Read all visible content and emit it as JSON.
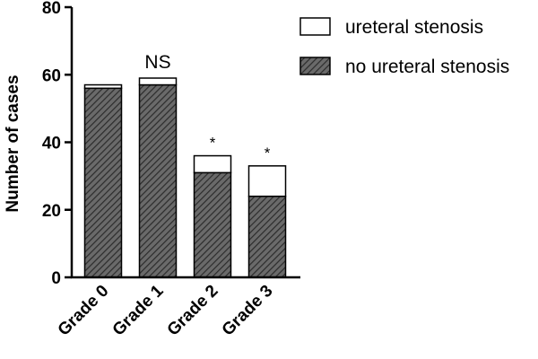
{
  "chart_data": {
    "type": "bar",
    "stacked": true,
    "categories": [
      "Grade 0",
      "Grade 1",
      "Grade 2",
      "Grade 3"
    ],
    "series": [
      {
        "name": "no ureteral stenosis",
        "values": [
          56,
          57,
          31,
          24
        ],
        "pattern": "diagonal-hatch",
        "color": "#555555"
      },
      {
        "name": "ureteral stenosis",
        "values": [
          1,
          2,
          5,
          9
        ],
        "pattern": "solid",
        "color": "#ffffff"
      }
    ],
    "annotations": [
      "",
      "NS",
      "*",
      "*"
    ],
    "ylabel": "Number of cases",
    "xlabel": "",
    "ylim": [
      0,
      80
    ],
    "yticks": [
      "0",
      "20",
      "40",
      "60",
      "80"
    ],
    "legend_position": "top-right",
    "grid": false
  }
}
